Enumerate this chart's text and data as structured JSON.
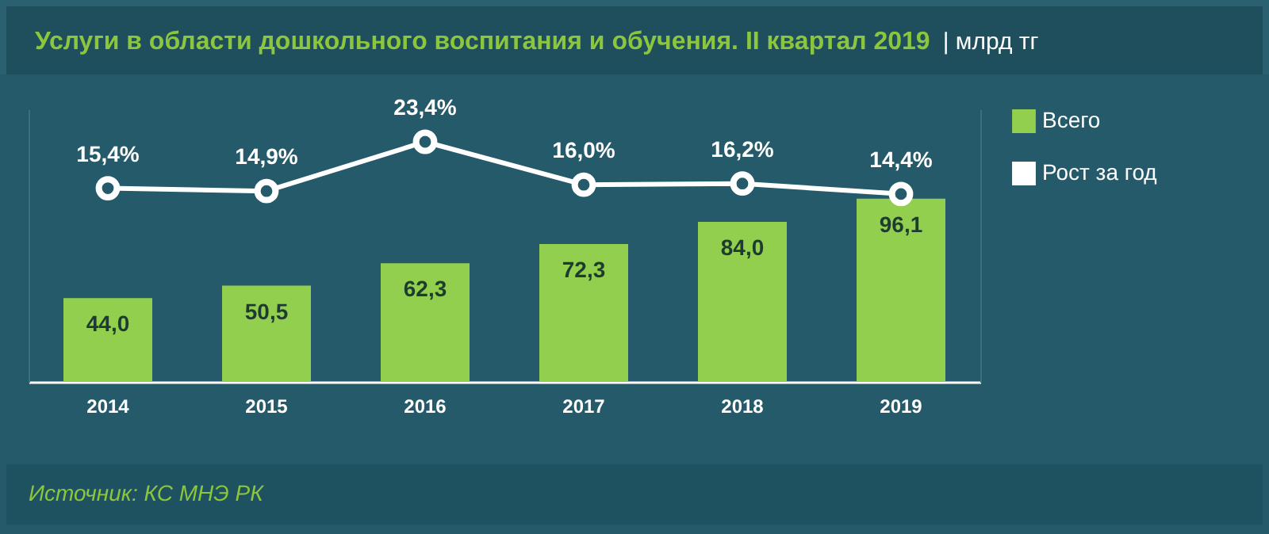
{
  "chart_data": {
    "type": "bar",
    "title": "Услуги в области дошкольного воспитания и обучения. II квартал 2019",
    "subtitle": "| млрд тг",
    "categories": [
      "2014",
      "2015",
      "2016",
      "2017",
      "2018",
      "2019"
    ],
    "series": [
      {
        "name": "Всего",
        "color": "#92cf4e",
        "values": [
          44.0,
          50.5,
          62.3,
          72.3,
          84.0,
          96.1
        ],
        "value_labels": [
          "44,0",
          "50,5",
          "62,3",
          "72,3",
          "84,0",
          "96,1"
        ]
      },
      {
        "name": "Рост за год",
        "type": "line",
        "axis": "y2",
        "color": "#ffffff",
        "marker": "circle",
        "values": [
          15.4,
          14.9,
          23.4,
          16.0,
          16.2,
          14.4
        ],
        "value_labels": [
          "15,4%",
          "14,9%",
          "23,4%",
          "16,0%",
          "16,2%",
          "14,4%"
        ]
      }
    ],
    "ylim": [
      0,
      143
    ],
    "y2lim": [
      -18,
      29
    ],
    "legend": "right",
    "tick_labels": "x",
    "annotations": [
      "Источник: КС МНЭ РК"
    ]
  }
}
